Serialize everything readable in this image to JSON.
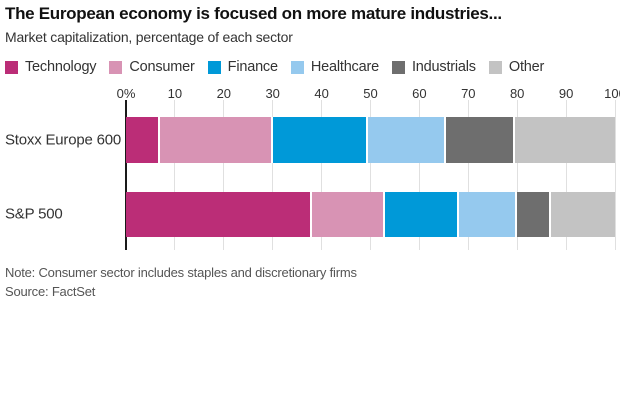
{
  "title": "The European economy is focused on more mature industries...",
  "subtitle": "Market capitalization, percentage of each sector",
  "note": "Note: Consumer sector includes staples and discretionary firms",
  "source": "Source: FactSet",
  "axis": {
    "ticks": [
      "0%",
      "10",
      "20",
      "30",
      "40",
      "50",
      "60",
      "70",
      "80",
      "90",
      "100"
    ],
    "min": 0,
    "max": 100
  },
  "chart_data": {
    "type": "bar",
    "stacked": true,
    "orientation": "horizontal",
    "title": "The European economy is focused on more mature industries...",
    "subtitle": "Market capitalization, percentage of each sector",
    "categories": [
      "Stoxx Europe 600",
      "S&P 500"
    ],
    "series": [
      {
        "name": "Technology",
        "color": "#bb2d77",
        "values": [
          7,
          38
        ]
      },
      {
        "name": "Consumer",
        "color": "#d893b4",
        "values": [
          23,
          15
        ]
      },
      {
        "name": "Finance",
        "color": "#0099d8",
        "values": [
          19.5,
          15
        ]
      },
      {
        "name": "Healthcare",
        "color": "#95c9ee",
        "values": [
          16,
          12
        ]
      },
      {
        "name": "Industrials",
        "color": "#6e6e6e",
        "values": [
          14,
          7
        ]
      },
      {
        "name": "Other",
        "color": "#c3c3c3",
        "values": [
          20.5,
          13
        ]
      }
    ],
    "xlim": [
      0,
      100
    ],
    "grid": true,
    "legend_position": "top",
    "gridline_color": "#e0e0e0",
    "axis_line_color": "#1a1a1a"
  }
}
